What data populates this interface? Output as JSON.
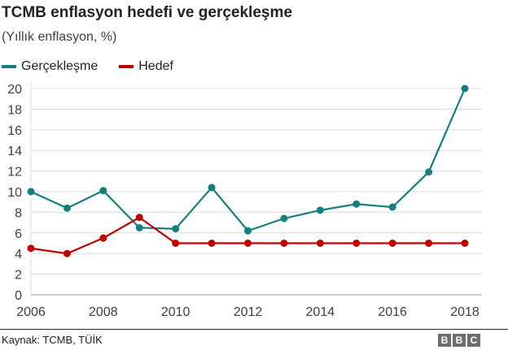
{
  "title": "TCMB enflasyon hedefi ve gerçekleşme",
  "subtitle": "(Yıllık enflasyon, %)",
  "source": "Kaynak: TCMB, TÜİK",
  "logo": "BBC",
  "chart_data": {
    "type": "line",
    "title": "TCMB enflasyon hedefi ve gerçekleşme",
    "subtitle": "(Yıllık enflasyon, %)",
    "x": [
      2006,
      2007,
      2008,
      2009,
      2010,
      2011,
      2012,
      2013,
      2014,
      2015,
      2016,
      2017,
      2018
    ],
    "xticks": [
      2006,
      2008,
      2010,
      2012,
      2014,
      2016,
      2018
    ],
    "yticks": [
      0,
      2,
      4,
      6,
      8,
      10,
      12,
      14,
      16,
      18,
      20
    ],
    "xlim": [
      2006,
      2018.5
    ],
    "ylim": [
      0,
      20
    ],
    "grid": true,
    "legend_placement": "top-left",
    "series": [
      {
        "name": "Gerçekleşme",
        "color": "#13807f",
        "values": [
          10.0,
          8.4,
          10.1,
          6.5,
          6.4,
          10.4,
          6.2,
          7.4,
          8.2,
          8.8,
          8.5,
          11.9,
          20.0
        ]
      },
      {
        "name": "Hedef",
        "color": "#c00000",
        "values": [
          4.5,
          4.0,
          5.5,
          7.5,
          5.0,
          5.0,
          5.0,
          5.0,
          5.0,
          5.0,
          5.0,
          5.0,
          5.0
        ]
      }
    ]
  }
}
